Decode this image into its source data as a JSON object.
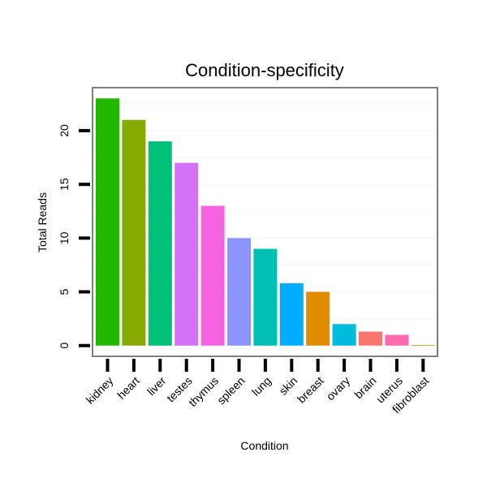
{
  "chart_data": {
    "type": "bar",
    "title": "Condition-specificity",
    "xlabel": "Condition",
    "ylabel": "Total Reads",
    "categories": [
      "kidney",
      "heart",
      "liver",
      "testes",
      "thymus",
      "spleen",
      "lung",
      "skin",
      "breast",
      "ovary",
      "brain",
      "uterus",
      "fibroblast"
    ],
    "values": [
      23,
      21,
      19,
      17,
      13,
      10,
      9,
      5.8,
      5,
      2,
      1.3,
      1,
      0.05
    ],
    "colors": [
      "#22b800",
      "#86aa00",
      "#00bf76",
      "#d471f6",
      "#f563e2",
      "#8d94fe",
      "#00c0b5",
      "#00acfd",
      "#e08b00",
      "#00bbdc",
      "#f8766d",
      "#fe6aae",
      "#b79f00"
    ],
    "ylim": [
      -1,
      24
    ],
    "yticks": [
      0,
      5,
      10,
      15,
      20
    ],
    "grid": true,
    "background": "#ffffff",
    "grid_color": "#f6f6f6",
    "frame_color": "#7f7f7f"
  }
}
